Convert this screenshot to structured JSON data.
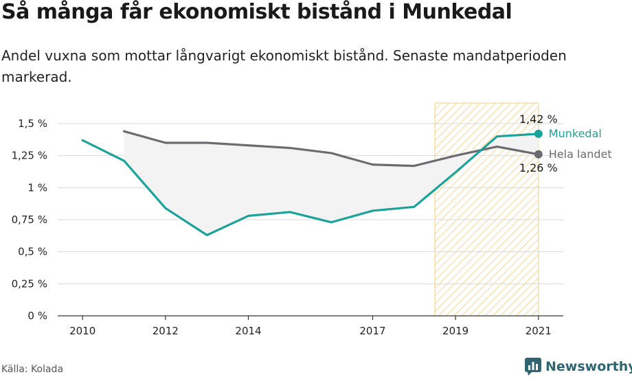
{
  "chart_data": {
    "type": "line",
    "title": "Så många får ekonomiskt bistånd i Munkedal",
    "subtitle": "Andel vuxna som mottar långvarigt ekonomiskt bistånd. Senaste mandatperioden markerad.",
    "x_ticks": [
      "2010",
      "2012",
      "2014",
      "2017",
      "2019",
      "2021"
    ],
    "y_ticks": [
      "0 %",
      "0,25 %",
      "0,5 %",
      "0,75 %",
      "1 %",
      "1,25 %",
      "1,5 %"
    ],
    "ylim": [
      0,
      1.5
    ],
    "grid": true,
    "highlight_period": [
      2018.5,
      2021
    ],
    "series": [
      {
        "name": "Munkedal",
        "color": "#1aa39a",
        "x": [
          2010,
          2011,
          2012,
          2013,
          2014,
          2015,
          2016,
          2017,
          2018,
          2019,
          2020,
          2021
        ],
        "values": [
          1.37,
          1.21,
          0.84,
          0.63,
          0.78,
          0.81,
          0.73,
          0.82,
          0.85,
          1.12,
          1.4,
          1.42
        ],
        "end_label": "1,42 %"
      },
      {
        "name": "Hela landet",
        "color": "#6d6b70",
        "x": [
          2011,
          2012,
          2013,
          2014,
          2015,
          2016,
          2017,
          2018,
          2019,
          2020,
          2021
        ],
        "values": [
          1.44,
          1.35,
          1.35,
          1.33,
          1.31,
          1.27,
          1.18,
          1.17,
          1.25,
          1.32,
          1.26
        ],
        "end_label": "1,26 %"
      }
    ]
  },
  "source": "Källa: Kolada",
  "logo": {
    "text": "Newsworthy",
    "icon": "bar-chart-icon",
    "color": "#2f6570"
  }
}
